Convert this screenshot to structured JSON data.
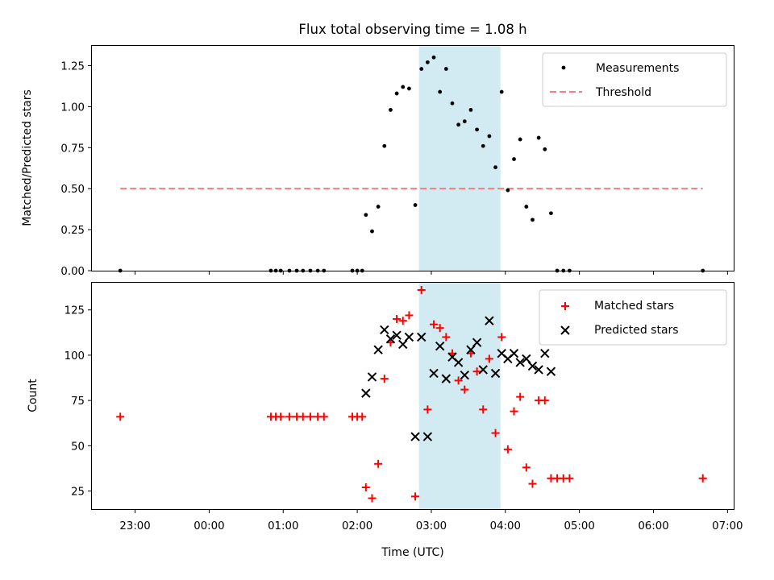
{
  "figure": {
    "title": "Flux total observing time = 1.08 h",
    "xlabel": "Time (UTC)",
    "x_tick_labels": [
      "23:00",
      "00:00",
      "01:00",
      "02:00",
      "03:00",
      "04:00",
      "05:00",
      "06:00",
      "07:00"
    ],
    "highlight_color": "#add8e6",
    "threshold_color": "#f08080"
  },
  "chart_data": [
    {
      "type": "scatter",
      "title": "Flux total observing time = 1.08 h",
      "ylabel": "Matched/Predicted stars",
      "xlabel": "",
      "xlim": [
        "22:25",
        "07:05"
      ],
      "ylim": [
        0,
        1.37
      ],
      "y_ticks": [
        "0.00",
        "0.25",
        "0.50",
        "0.75",
        "1.00",
        "1.25"
      ],
      "legend_position": "upper right",
      "highlight_span": [
        "02:50",
        "03:56"
      ],
      "series": [
        {
          "name": "Measurements",
          "marker": "dot",
          "color": "#000000",
          "points": [
            [
              "22:48",
              0.0
            ],
            [
              "00:50",
              0.0
            ],
            [
              "00:54",
              0.0
            ],
            [
              "00:58",
              0.0
            ],
            [
              "01:05",
              0.0
            ],
            [
              "01:11",
              0.0
            ],
            [
              "01:16",
              0.0
            ],
            [
              "01:22",
              0.0
            ],
            [
              "01:28",
              0.0
            ],
            [
              "01:33",
              0.0
            ],
            [
              "01:56",
              0.0
            ],
            [
              "02:00",
              0.0
            ],
            [
              "02:04",
              0.0
            ],
            [
              "02:07",
              0.34
            ],
            [
              "02:12",
              0.24
            ],
            [
              "02:17",
              0.39
            ],
            [
              "02:22",
              0.76
            ],
            [
              "02:27",
              0.98
            ],
            [
              "02:32",
              1.08
            ],
            [
              "02:37",
              1.12
            ],
            [
              "02:42",
              1.11
            ],
            [
              "02:47",
              0.4
            ],
            [
              "02:52",
              1.23
            ],
            [
              "02:57",
              1.27
            ],
            [
              "03:02",
              1.3
            ],
            [
              "03:07",
              1.09
            ],
            [
              "03:12",
              1.23
            ],
            [
              "03:17",
              1.02
            ],
            [
              "03:22",
              0.89
            ],
            [
              "03:27",
              0.91
            ],
            [
              "03:32",
              0.98
            ],
            [
              "03:37",
              0.86
            ],
            [
              "03:42",
              0.76
            ],
            [
              "03:47",
              0.82
            ],
            [
              "03:52",
              0.63
            ],
            [
              "03:57",
              1.09
            ],
            [
              "04:02",
              0.49
            ],
            [
              "04:07",
              0.68
            ],
            [
              "04:12",
              0.8
            ],
            [
              "04:17",
              0.39
            ],
            [
              "04:22",
              0.31
            ],
            [
              "04:27",
              0.81
            ],
            [
              "04:32",
              0.74
            ],
            [
              "04:37",
              0.35
            ],
            [
              "04:42",
              0.0
            ],
            [
              "04:47",
              0.0
            ],
            [
              "04:52",
              0.0
            ],
            [
              "06:40",
              0.0
            ]
          ]
        },
        {
          "name": "Threshold",
          "marker": "dashed-line",
          "color": "#f08080",
          "points": [
            [
              "22:48",
              0.5
            ],
            [
              "06:40",
              0.5
            ]
          ]
        }
      ]
    },
    {
      "type": "scatter",
      "ylabel": "Count",
      "xlabel": "Time (UTC)",
      "xlim": [
        "22:25",
        "07:05"
      ],
      "ylim": [
        15,
        140
      ],
      "y_ticks": [
        "25",
        "50",
        "75",
        "100",
        "125"
      ],
      "legend_position": "upper right",
      "highlight_span": [
        "02:50",
        "03:56"
      ],
      "series": [
        {
          "name": "Matched stars",
          "marker": "plus",
          "color": "#ff0000",
          "points": [
            [
              "22:48",
              66
            ],
            [
              "00:50",
              66
            ],
            [
              "00:54",
              66
            ],
            [
              "00:58",
              66
            ],
            [
              "01:05",
              66
            ],
            [
              "01:11",
              66
            ],
            [
              "01:16",
              66
            ],
            [
              "01:22",
              66
            ],
            [
              "01:28",
              66
            ],
            [
              "01:33",
              66
            ],
            [
              "01:56",
              66
            ],
            [
              "02:00",
              66
            ],
            [
              "02:04",
              66
            ],
            [
              "02:07",
              27
            ],
            [
              "02:12",
              21
            ],
            [
              "02:17",
              40
            ],
            [
              "02:22",
              87
            ],
            [
              "02:27",
              107
            ],
            [
              "02:32",
              120
            ],
            [
              "02:37",
              119
            ],
            [
              "02:42",
              122
            ],
            [
              "02:47",
              22
            ],
            [
              "02:52",
              136
            ],
            [
              "02:57",
              70
            ],
            [
              "03:02",
              117
            ],
            [
              "03:07",
              115
            ],
            [
              "03:12",
              110
            ],
            [
              "03:17",
              101
            ],
            [
              "03:22",
              86
            ],
            [
              "03:27",
              81
            ],
            [
              "03:32",
              101
            ],
            [
              "03:37",
              91
            ],
            [
              "03:42",
              70
            ],
            [
              "03:47",
              98
            ],
            [
              "03:52",
              57
            ],
            [
              "03:57",
              110
            ],
            [
              "04:02",
              48
            ],
            [
              "04:07",
              69
            ],
            [
              "04:12",
              77
            ],
            [
              "04:17",
              38
            ],
            [
              "04:22",
              29
            ],
            [
              "04:27",
              75
            ],
            [
              "04:32",
              75
            ],
            [
              "04:37",
              32
            ],
            [
              "04:42",
              32
            ],
            [
              "04:47",
              32
            ],
            [
              "04:52",
              32
            ],
            [
              "06:40",
              32
            ]
          ]
        },
        {
          "name": "Predicted stars",
          "marker": "x",
          "color": "#000000",
          "points": [
            [
              "02:07",
              79
            ],
            [
              "02:12",
              88
            ],
            [
              "02:17",
              103
            ],
            [
              "02:22",
              114
            ],
            [
              "02:27",
              109
            ],
            [
              "02:32",
              111
            ],
            [
              "02:37",
              106
            ],
            [
              "02:42",
              110
            ],
            [
              "02:47",
              55
            ],
            [
              "02:52",
              110
            ],
            [
              "02:57",
              55
            ],
            [
              "03:02",
              90
            ],
            [
              "03:07",
              105
            ],
            [
              "03:12",
              87
            ],
            [
              "03:17",
              99
            ],
            [
              "03:22",
              96
            ],
            [
              "03:27",
              89
            ],
            [
              "03:32",
              103
            ],
            [
              "03:37",
              107
            ],
            [
              "03:42",
              92
            ],
            [
              "03:47",
              119
            ],
            [
              "03:52",
              90
            ],
            [
              "03:57",
              101
            ],
            [
              "04:02",
              98
            ],
            [
              "04:07",
              101
            ],
            [
              "04:12",
              96
            ],
            [
              "04:17",
              98
            ],
            [
              "04:22",
              94
            ],
            [
              "04:27",
              92
            ],
            [
              "04:32",
              101
            ],
            [
              "04:37",
              91
            ]
          ]
        }
      ]
    }
  ]
}
